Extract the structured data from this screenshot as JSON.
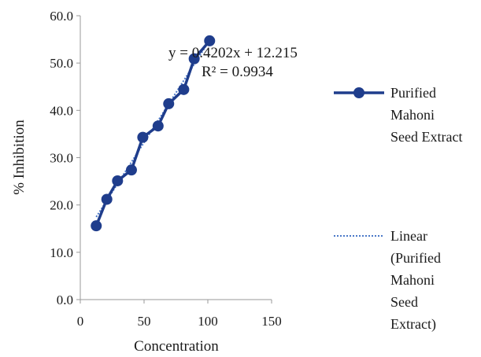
{
  "chart_data": {
    "type": "line",
    "title": "",
    "xlabel": "Concentration",
    "ylabel": "% Inhibition",
    "xlim": [
      0,
      150
    ],
    "ylim": [
      0,
      60
    ],
    "xticks": [
      "0",
      "50",
      "100",
      "150"
    ],
    "yticks": [
      "0.0",
      "10.0",
      "20.0",
      "30.0",
      "40.0",
      "50.0",
      "60.0"
    ],
    "grid": false,
    "legend_position": "right",
    "series": [
      {
        "name": "Purified Mahoni Seed Extract",
        "color": "#1f3d8c",
        "marker": "circle",
        "x": [
          12.5,
          20.8,
          29.2,
          40.1,
          49.0,
          61.0,
          69.3,
          81.1,
          89.3,
          101.4
        ],
        "y": [
          15.6,
          21.2,
          25.1,
          27.4,
          34.3,
          36.7,
          41.4,
          44.4,
          50.9,
          54.7
        ]
      }
    ],
    "trendline": {
      "name": "Linear (Purified Mahoni Seed Extract)",
      "type": "linear",
      "slope": 0.4202,
      "intercept": 12.215,
      "color": "#4a78c8",
      "style": "dotted"
    },
    "annotations": {
      "equation": "y = 0.4202x + 12.215",
      "r_squared": "R² = 0.9934"
    },
    "legend": [
      {
        "lines": [
          "Purified",
          "Mahoni",
          "Seed Extract"
        ]
      },
      {
        "lines": [
          "Linear",
          "(Purified",
          "Mahoni",
          "Seed",
          "Extract)"
        ]
      }
    ]
  }
}
